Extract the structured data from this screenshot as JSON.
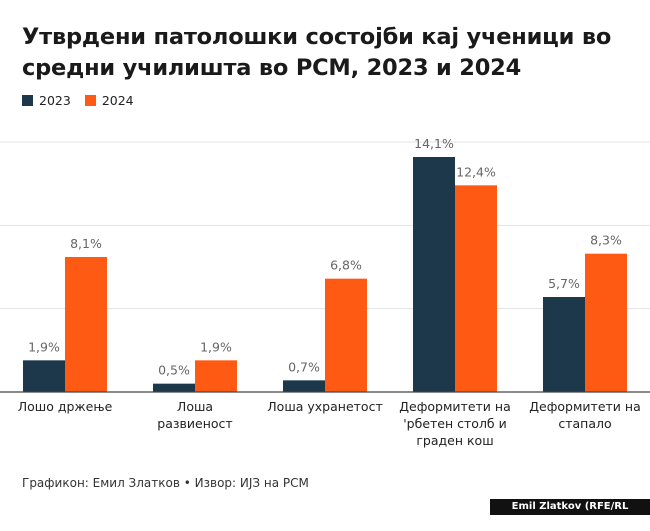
{
  "title": "Утврдени патолошки состојби кај ученици во средни училишта во РСМ, 2023 и 2024",
  "footer": "Графикон: Емил Златков • Извор: ИЈЗ на РСМ",
  "credit": "Emil Zlatkov (RFE/RL Graphics)",
  "colors": {
    "2023": "#1c384a",
    "2024": "#ff5a13",
    "grid": "#e3e3e3",
    "axis": "#444444",
    "value_text": "#666666"
  },
  "chart_data": {
    "type": "bar",
    "title": "Утврдени патолошки состојби кај ученици во средни училишта во РСМ, 2023 и 2024",
    "xlabel": "",
    "ylabel": "",
    "ylim": [
      0,
      15
    ],
    "grid": true,
    "legend": "top-left",
    "categories": [
      [
        "Лошо држење"
      ],
      [
        "Лоша",
        "развиеност"
      ],
      [
        "Лоша ухранетост"
      ],
      [
        "Деформитети на",
        "'рбетен столб и",
        "граден кош"
      ],
      [
        "Деформитети на",
        "стапало"
      ]
    ],
    "series": [
      {
        "name": "2023",
        "values": [
          1.9,
          0.5,
          0.7,
          14.1,
          5.7
        ],
        "labels": [
          "1,9%",
          "0,5%",
          "0,7%",
          "14,1%",
          "5,7%"
        ]
      },
      {
        "name": "2024",
        "values": [
          8.1,
          1.9,
          6.8,
          12.4,
          8.3
        ],
        "labels": [
          "8,1%",
          "1,9%",
          "6,8%",
          "12,4%",
          "8,3%"
        ]
      }
    ]
  }
}
